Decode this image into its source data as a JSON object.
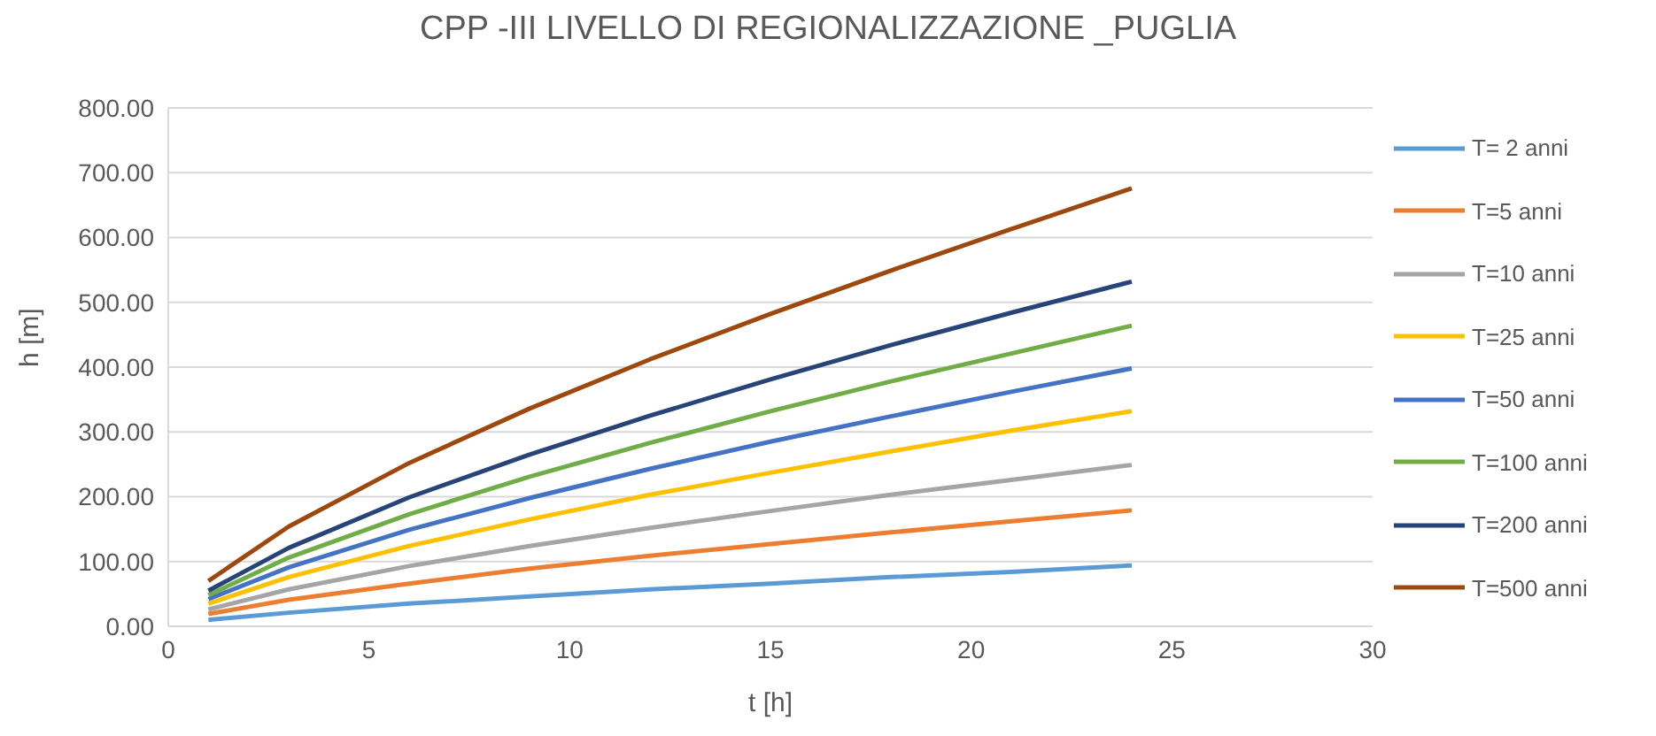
{
  "chart_data": {
    "type": "line",
    "title": "CPP -III LIVELLO DI REGIONALIZZAZIONE _PUGLIA",
    "xlabel": "t [h]",
    "ylabel": "h [m]",
    "x": [
      1,
      3,
      6,
      9,
      12,
      15,
      18,
      21,
      24
    ],
    "series": [
      {
        "name": "T= 2 anni",
        "color": "#5b9bd5",
        "values": [
          10,
          21,
          35,
          46,
          57,
          66,
          76,
          84,
          94
        ]
      },
      {
        "name": "T=5 anni",
        "color": "#ed7d31",
        "values": [
          19,
          41,
          66,
          89,
          109,
          127,
          145,
          162,
          179
        ]
      },
      {
        "name": "T=10 anni",
        "color": "#a5a5a5",
        "values": [
          26,
          57,
          93,
          124,
          152,
          178,
          203,
          226,
          249
        ]
      },
      {
        "name": "T=25 anni",
        "color": "#ffc000",
        "values": [
          35,
          76,
          124,
          165,
          203,
          237,
          270,
          302,
          332
        ]
      },
      {
        "name": "T=50 anni",
        "color": "#4472c4",
        "values": [
          42,
          91,
          149,
          198,
          243,
          285,
          324,
          362,
          398
        ]
      },
      {
        "name": "T=100 anni",
        "color": "#70ad47",
        "values": [
          48,
          106,
          173,
          231,
          283,
          332,
          378,
          421,
          464
        ]
      },
      {
        "name": "T=200 anni",
        "color": "#264478",
        "values": [
          55,
          121,
          199,
          265,
          325,
          381,
          434,
          484,
          532
        ]
      },
      {
        "name": "T=500 anni",
        "color": "#9e480e",
        "values": [
          70,
          154,
          252,
          336,
          412,
          482,
          549,
          613,
          676
        ]
      }
    ],
    "xlim": [
      0,
      30
    ],
    "xticks": [
      0,
      5,
      10,
      15,
      20,
      25,
      30
    ],
    "ylim": [
      0,
      800
    ],
    "yticks": [
      {
        "value": 0,
        "label": "0.00"
      },
      {
        "value": 100,
        "label": "100.00"
      },
      {
        "value": 200,
        "label": "200.00"
      },
      {
        "value": 300,
        "label": "300.00"
      },
      {
        "value": 400,
        "label": "400.00"
      },
      {
        "value": 500,
        "label": "500.00"
      },
      {
        "value": 600,
        "label": "600.00"
      },
      {
        "value": 700,
        "label": "700.00"
      },
      {
        "value": 800,
        "label": "800.00"
      }
    ],
    "grid": "y",
    "legend": "right",
    "marker": "none",
    "line_style": "solid"
  }
}
